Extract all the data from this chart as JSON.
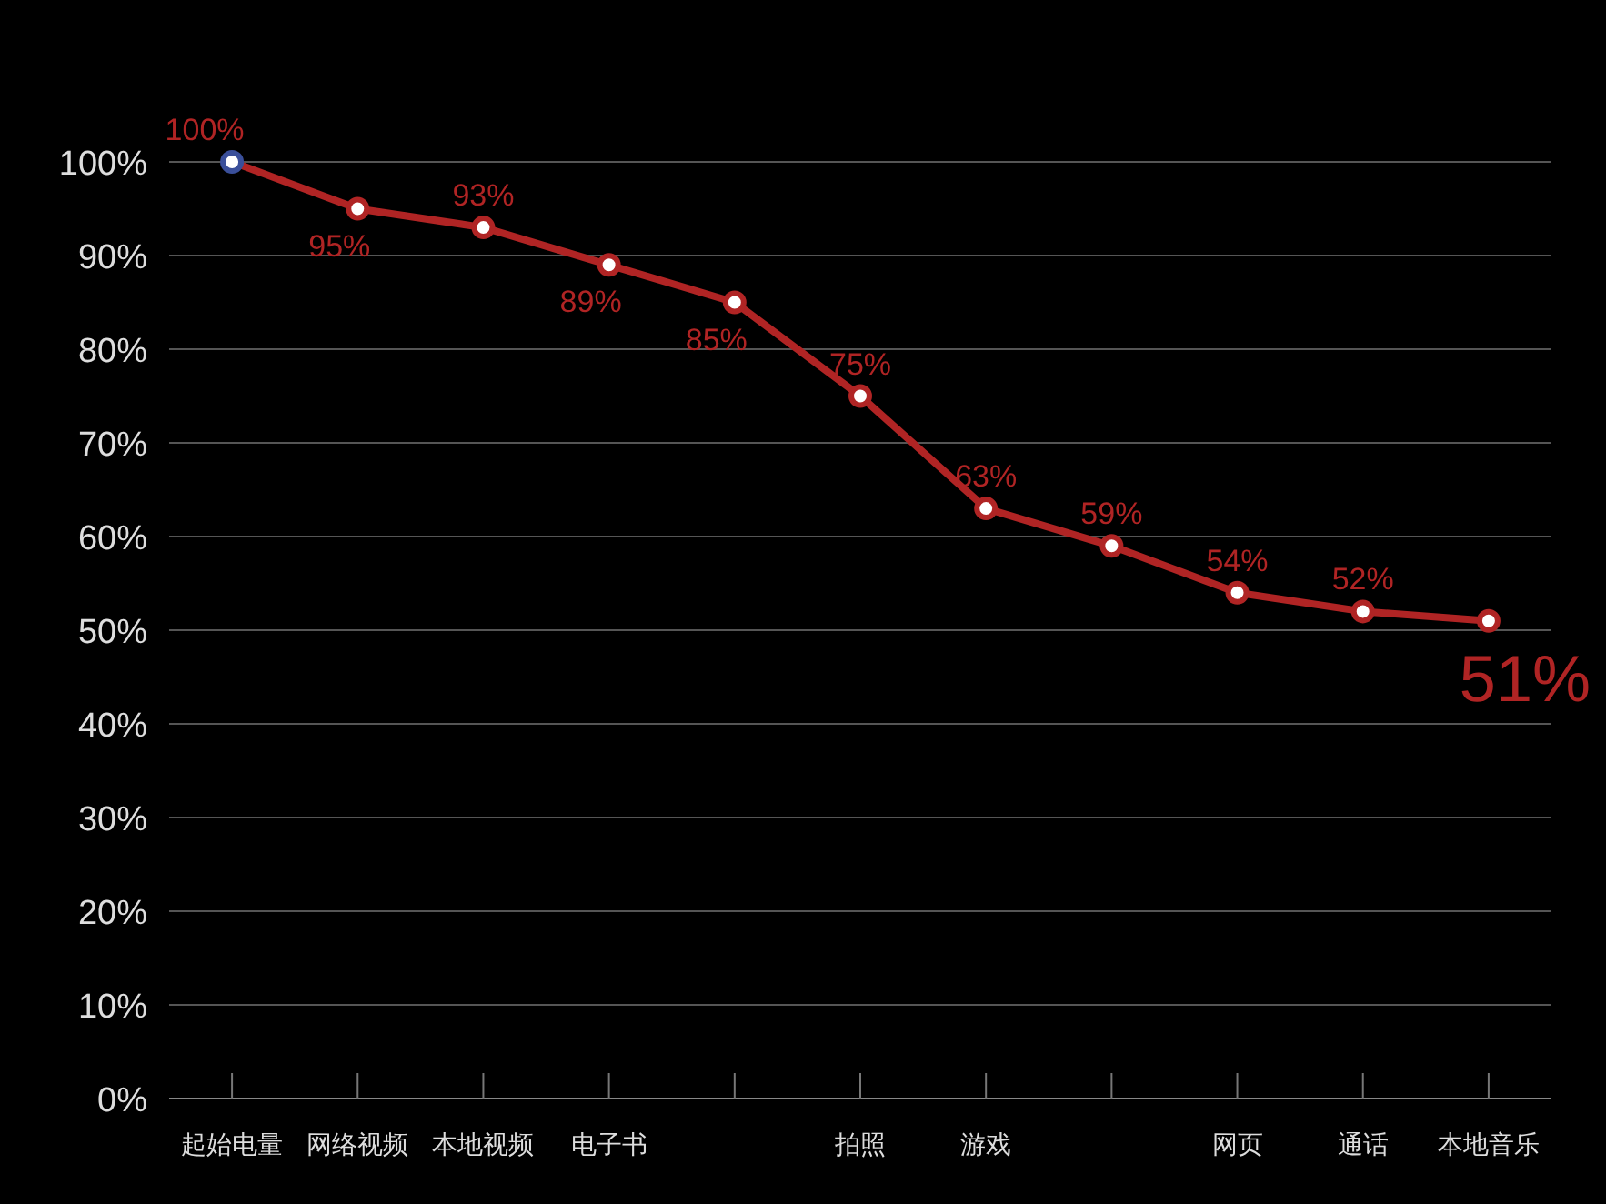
{
  "chart_data": {
    "type": "line",
    "categories": [
      "起始电量",
      "网络视频",
      "本地视频",
      "电子书",
      null,
      "拍照",
      "游戏",
      null,
      "网页",
      "通话",
      "本地音乐"
    ],
    "series": [
      {
        "color": "#b02424",
        "values": [
          100,
          95,
          93,
          89,
          85,
          75,
          63,
          59,
          54,
          52,
          51
        ],
        "value_labels": [
          "100%",
          "95%",
          "93%",
          "89%",
          "85%",
          "75%",
          "63%",
          "59%",
          "54%",
          "52%",
          "51%"
        ]
      }
    ],
    "ylim": [
      0,
      100
    ],
    "yticks": [
      {
        "value": 0,
        "label": "0%"
      },
      {
        "value": 10,
        "label": "10%"
      },
      {
        "value": 20,
        "label": "20%"
      },
      {
        "value": 30,
        "label": "30%"
      },
      {
        "value": 40,
        "label": "40%"
      },
      {
        "value": 50,
        "label": "50%"
      },
      {
        "value": 60,
        "label": "60%"
      },
      {
        "value": 70,
        "label": "70%"
      },
      {
        "value": 80,
        "label": "80%"
      },
      {
        "value": 90,
        "label": "90%"
      },
      {
        "value": 100,
        "label": "100%"
      }
    ],
    "grid": "y",
    "marker": "circle",
    "line_style": "solid"
  }
}
